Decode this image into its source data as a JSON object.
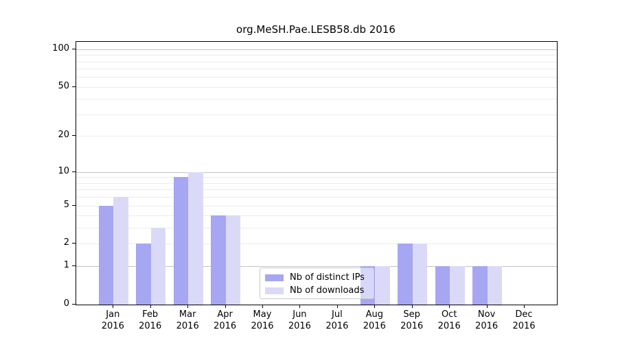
{
  "title": "org.MeSH.Pae.LESB58.db 2016",
  "colors": {
    "bar_dark": "#a6a6f2",
    "bar_light": "#dadaf8",
    "gridline_major": "#c3c3c3",
    "gridline_minor": "#ebebeb",
    "axis": "#000000",
    "legend_border": "#c9c9c9"
  },
  "chart_data": {
    "type": "bar",
    "title": "org.MeSH.Pae.LESB58.db 2016",
    "xlabel": "",
    "ylabel": "",
    "y_scale": "log10(1+x)",
    "ylim": [
      0,
      114
    ],
    "grid": true,
    "legend_position": "bottom-center",
    "categories": [
      {
        "month": "Jan",
        "year": "2016"
      },
      {
        "month": "Feb",
        "year": "2016"
      },
      {
        "month": "Mar",
        "year": "2016"
      },
      {
        "month": "Apr",
        "year": "2016"
      },
      {
        "month": "May",
        "year": "2016"
      },
      {
        "month": "Jun",
        "year": "2016"
      },
      {
        "month": "Jul",
        "year": "2016"
      },
      {
        "month": "Aug",
        "year": "2016"
      },
      {
        "month": "Sep",
        "year": "2016"
      },
      {
        "month": "Oct",
        "year": "2016"
      },
      {
        "month": "Nov",
        "year": "2016"
      },
      {
        "month": "Dec",
        "year": "2016"
      }
    ],
    "series": [
      {
        "name": "Nb of distinct IPs",
        "color": "#a6a6f2",
        "values": [
          5,
          2,
          9,
          4,
          0,
          0,
          0,
          1,
          2,
          1,
          1,
          0
        ]
      },
      {
        "name": "Nb of downloads",
        "color": "#dadaf8",
        "values": [
          6,
          3,
          10,
          4,
          0,
          0,
          0,
          1,
          2,
          1,
          1,
          0
        ]
      }
    ],
    "y_ticks": [
      0,
      1,
      2,
      5,
      10,
      20,
      50,
      100
    ],
    "y_major_gridlines": [
      1,
      10,
      100
    ],
    "y_minor_gridlines": [
      2,
      3,
      4,
      5,
      6,
      7,
      8,
      9,
      20,
      30,
      40,
      50,
      60,
      70,
      80,
      90
    ]
  }
}
